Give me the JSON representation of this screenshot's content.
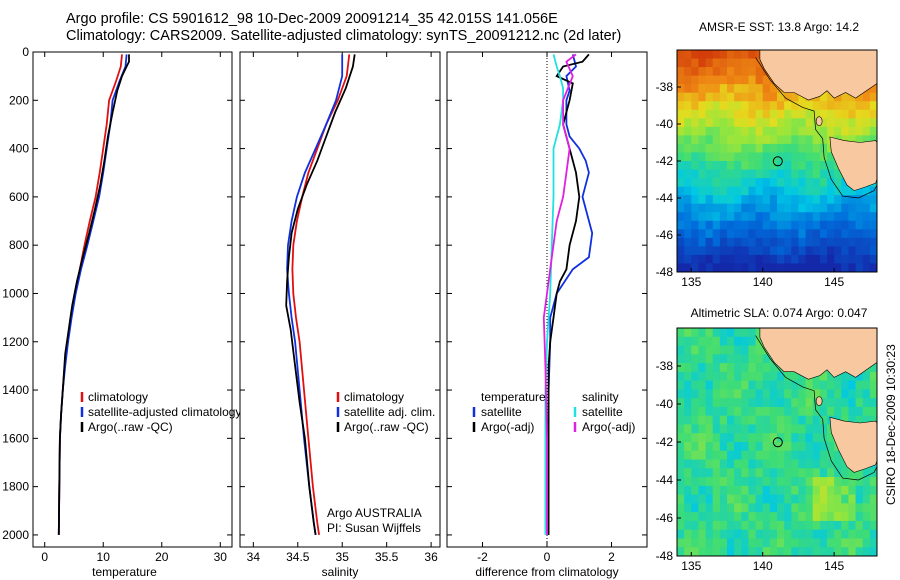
{
  "header": {
    "line1": "Argo profile: CS 5901612_98 10-Dec-2009 20091214_35 42.015S 141.056E",
    "line2": "Climatology: CARS2009. Satellite-adjusted climatology: synTS_20091212.nc (2d later)"
  },
  "side_label": "CSIRO 18-Dec-2009 10:30:23",
  "colors": {
    "climatology": "#e01010",
    "satellite": "#1030e0",
    "argo": "#000000",
    "salinity_satellite": "#20e0e0",
    "salinity_argo": "#e020e0",
    "land": "#f8c8a0"
  },
  "chart_data": [
    {
      "type": "line",
      "panel": "temperature",
      "xlabel": "temperature",
      "ylabel": "",
      "xlim": [
        -2,
        32
      ],
      "ylim": [
        2050,
        0
      ],
      "y_inverted": true,
      "xticks": [
        "0",
        "10",
        "20",
        "30"
      ],
      "xtick_values": [
        0,
        10,
        20,
        30
      ],
      "yticks": [
        "0",
        "200",
        "400",
        "600",
        "800",
        "1000",
        "1200",
        "1400",
        "1600",
        "1800",
        "2000"
      ],
      "ytick_values": [
        0,
        200,
        400,
        600,
        800,
        1000,
        1200,
        1400,
        1600,
        1800,
        2000
      ],
      "legend": [
        "climatology",
        "satellite-adjusted climatology",
        "Argo(..raw -QC)"
      ],
      "series": [
        {
          "name": "climatology",
          "color_key": "climatology",
          "x": [
            13.2,
            13.0,
            12.2,
            11.0,
            10.6,
            10.0,
            9.4,
            8.7,
            7.7,
            6.8,
            6.0,
            5.2,
            4.4,
            3.9,
            3.4,
            3.1,
            2.8,
            2.6,
            2.5,
            2.4
          ],
          "y": [
            10,
            60,
            120,
            200,
            300,
            400,
            500,
            600,
            700,
            800,
            900,
            1000,
            1100,
            1200,
            1300,
            1400,
            1500,
            1600,
            1800,
            2000
          ]
        },
        {
          "name": "satellite-adjusted climatology",
          "color_key": "satellite",
          "x": [
            14.0,
            13.8,
            12.8,
            11.6,
            11.2,
            10.6,
            10.0,
            9.3,
            8.3,
            7.3,
            6.2,
            5.3,
            4.6,
            4.0,
            3.5,
            3.1,
            2.8,
            2.6,
            2.5,
            2.4
          ],
          "y": [
            10,
            60,
            120,
            200,
            300,
            400,
            500,
            600,
            700,
            800,
            900,
            1000,
            1100,
            1200,
            1300,
            1400,
            1500,
            1600,
            1800,
            2000
          ]
        },
        {
          "name": "Argo(..raw -QC)",
          "color_key": "argo",
          "x": [
            14.4,
            14.4,
            14.0,
            13.2,
            12.4,
            11.6,
            10.8,
            10.2,
            9.5,
            8.6,
            7.6,
            6.5,
            5.5,
            4.7,
            4.1,
            3.5,
            3.1,
            2.8,
            2.6,
            2.5,
            2.4
          ],
          "y": [
            10,
            40,
            60,
            100,
            160,
            250,
            350,
            450,
            550,
            650,
            750,
            850,
            950,
            1050,
            1150,
            1250,
            1400,
            1500,
            1600,
            1800,
            2000
          ]
        }
      ]
    },
    {
      "type": "line",
      "panel": "salinity",
      "xlabel": "salinity",
      "ylabel": "",
      "xlim": [
        33.85,
        36.1
      ],
      "ylim": [
        2050,
        0
      ],
      "y_inverted": true,
      "xticks": [
        "34",
        "34.5",
        "35",
        "35.5",
        "36"
      ],
      "xtick_values": [
        34,
        34.5,
        35,
        35.5,
        36
      ],
      "legend": [
        "climatology",
        "satellite adj. clim.",
        "Argo(..raw -QC)"
      ],
      "annotation": [
        "Argo AUSTRALIA",
        "PI: Susan Wijffels"
      ],
      "series": [
        {
          "name": "climatology",
          "color_key": "climatology",
          "x": [
            35.08,
            35.05,
            34.95,
            34.82,
            34.72,
            34.62,
            34.55,
            34.49,
            34.45,
            34.44,
            34.45,
            34.48,
            34.52,
            34.57,
            34.62,
            34.67,
            34.72,
            34.74
          ],
          "y": [
            10,
            100,
            200,
            300,
            400,
            500,
            600,
            700,
            800,
            900,
            1000,
            1100,
            1200,
            1400,
            1600,
            1800,
            1950,
            2000
          ]
        },
        {
          "name": "satellite adj. clim.",
          "color_key": "satellite",
          "x": [
            35.0,
            35.0,
            34.93,
            34.82,
            34.7,
            34.58,
            34.49,
            34.43,
            34.39,
            34.38,
            34.4,
            34.43,
            34.47,
            34.52,
            34.57,
            34.63,
            34.68,
            34.7
          ],
          "y": [
            10,
            100,
            200,
            300,
            400,
            500,
            600,
            700,
            800,
            900,
            1000,
            1100,
            1200,
            1400,
            1600,
            1800,
            1950,
            2000
          ]
        },
        {
          "name": "Argo(..raw -QC)",
          "color_key": "argo",
          "x": [
            35.14,
            35.12,
            35.04,
            34.92,
            34.82,
            34.72,
            34.6,
            34.5,
            34.43,
            34.4,
            34.38,
            34.37,
            34.42,
            34.47,
            34.52,
            34.58,
            34.63,
            34.68,
            34.7
          ],
          "y": [
            10,
            60,
            150,
            250,
            350,
            450,
            550,
            650,
            750,
            850,
            950,
            1050,
            1150,
            1300,
            1450,
            1600,
            1800,
            1950,
            2000
          ]
        }
      ]
    },
    {
      "type": "line",
      "panel": "difference",
      "xlabel": "difference from climatology",
      "ylabel": "",
      "xlim": [
        -3.1,
        3.1
      ],
      "ylim": [
        2050,
        0
      ],
      "y_inverted": true,
      "xticks": [
        "-2",
        "0",
        "2"
      ],
      "xtick_values": [
        -2,
        0,
        2
      ],
      "legend_titles": [
        "temperature",
        "salinity"
      ],
      "legend": [
        "satellite",
        "Argo(-adj)",
        "satellite",
        "Argo(-adj)"
      ],
      "series": [
        {
          "name": "satellite",
          "group": "temperature",
          "color_key": "satellite",
          "x": [
            0.8,
            0.9,
            0.6,
            0.7,
            0.6,
            0.6,
            0.7,
            1.0,
            1.2,
            1.3,
            1.2,
            1.1,
            1.4,
            1.3,
            0.8,
            0.3,
            0.1,
            0.1,
            0.05,
            0.05,
            0.05,
            0.05
          ],
          "y": [
            10,
            60,
            100,
            160,
            200,
            300,
            350,
            400,
            450,
            500,
            550,
            600,
            750,
            850,
            900,
            1000,
            1100,
            1200,
            1400,
            1600,
            1800,
            2000
          ]
        },
        {
          "name": "Argo(-adj)",
          "group": "temperature",
          "color_key": "argo",
          "x": [
            1.3,
            1.1,
            0.5,
            0.3,
            0.8,
            0.7,
            0.5,
            0.7,
            0.9,
            1.0,
            0.9,
            0.7,
            0.6,
            0.4,
            0.3,
            0.2,
            0.1,
            0.05,
            0.05,
            0.05,
            0.05,
            0.05
          ],
          "y": [
            10,
            40,
            60,
            100,
            130,
            200,
            300,
            400,
            500,
            600,
            700,
            800,
            900,
            950,
            1000,
            1100,
            1200,
            1300,
            1400,
            1600,
            1800,
            2000
          ]
        },
        {
          "name": "satellite",
          "group": "salinity",
          "color_key": "salinity_satellite",
          "x": [
            0.2,
            0.3,
            0.4,
            0.5,
            0.5,
            0.4,
            0.2,
            0.2,
            0.15,
            0.1,
            0.0,
            -0.05,
            -0.05,
            -0.05,
            -0.05,
            -0.05
          ],
          "y": [
            10,
            60,
            100,
            150,
            200,
            300,
            400,
            600,
            800,
            1000,
            1200,
            1400,
            1600,
            1800,
            1950,
            2000
          ]
        },
        {
          "name": "Argo(-adj)",
          "group": "salinity",
          "color_key": "salinity_argo",
          "x": [
            0.9,
            0.6,
            0.8,
            0.5,
            0.5,
            0.7,
            0.6,
            0.5,
            0.3,
            0.1,
            0.0,
            -0.1,
            -0.05,
            0.0,
            0.0
          ],
          "y": [
            10,
            40,
            100,
            200,
            300,
            400,
            500,
            600,
            700,
            900,
            1000,
            1100,
            1300,
            1600,
            2000
          ]
        }
      ]
    },
    {
      "type": "heatmap",
      "panel": "sst-map",
      "title": "AMSR-E SST: 13.8 Argo: 14.2",
      "xlim": [
        134,
        148
      ],
      "ylim": [
        -48,
        -36
      ],
      "xticks": [
        "135",
        "140",
        "145"
      ],
      "xtick_values": [
        135,
        140,
        145
      ],
      "yticks": [
        "-38",
        "-40",
        "-42",
        "-44",
        "-46",
        "-48"
      ],
      "ytick_values": [
        -38,
        -40,
        -42,
        -44,
        -46,
        -48
      ],
      "marker": {
        "lon": 141.056,
        "lat": -42.015
      }
    },
    {
      "type": "heatmap",
      "panel": "sla-map",
      "title": "Altimetric SLA: 0.074 Argo: 0.047",
      "xlim": [
        134,
        148
      ],
      "ylim": [
        -48,
        -36
      ],
      "xticks": [
        "135",
        "140",
        "145"
      ],
      "xtick_values": [
        135,
        140,
        145
      ],
      "yticks": [
        "-38",
        "-40",
        "-42",
        "-44",
        "-46",
        "-48"
      ],
      "ytick_values": [
        -38,
        -40,
        -42,
        -44,
        -46,
        -48
      ],
      "marker": {
        "lon": 141.056,
        "lat": -42.015
      }
    }
  ]
}
